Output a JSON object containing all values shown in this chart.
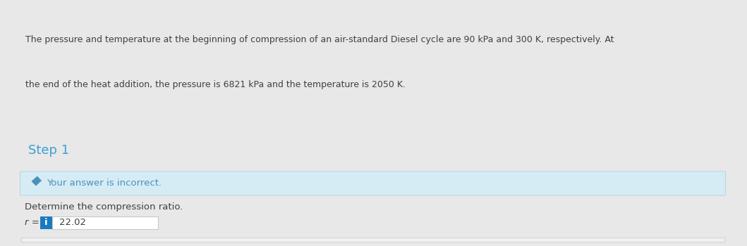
{
  "problem_text_line1": "The pressure and temperature at the beginning of compression of an air-standard Diesel cycle are 90 kPa and 300 K, respectively. At",
  "problem_text_line2": "the end of the heat addition, the pressure is 6821 kPa and the temperature is 2050 K.",
  "step_label": "Step 1",
  "incorrect_text": "Your answer is incorrect.",
  "determine_text": "Determine the compression ratio.",
  "r_label": "r =",
  "answer_value": "22.02",
  "bg_white": "#ffffff",
  "bg_page": "#e8e8e8",
  "bg_gray": "#f0f0f0",
  "bg_light_blue": "#d6ecf5",
  "color_blue_step": "#3a9fd6",
  "color_blue_incorrect": "#4a90b8",
  "color_dark_text": "#404040",
  "color_border": "#c8c8c8",
  "color_border_blue": "#b0d0e0",
  "color_info_bg": "#1a7abf",
  "fig_width": 10.59,
  "fig_height": 3.5
}
